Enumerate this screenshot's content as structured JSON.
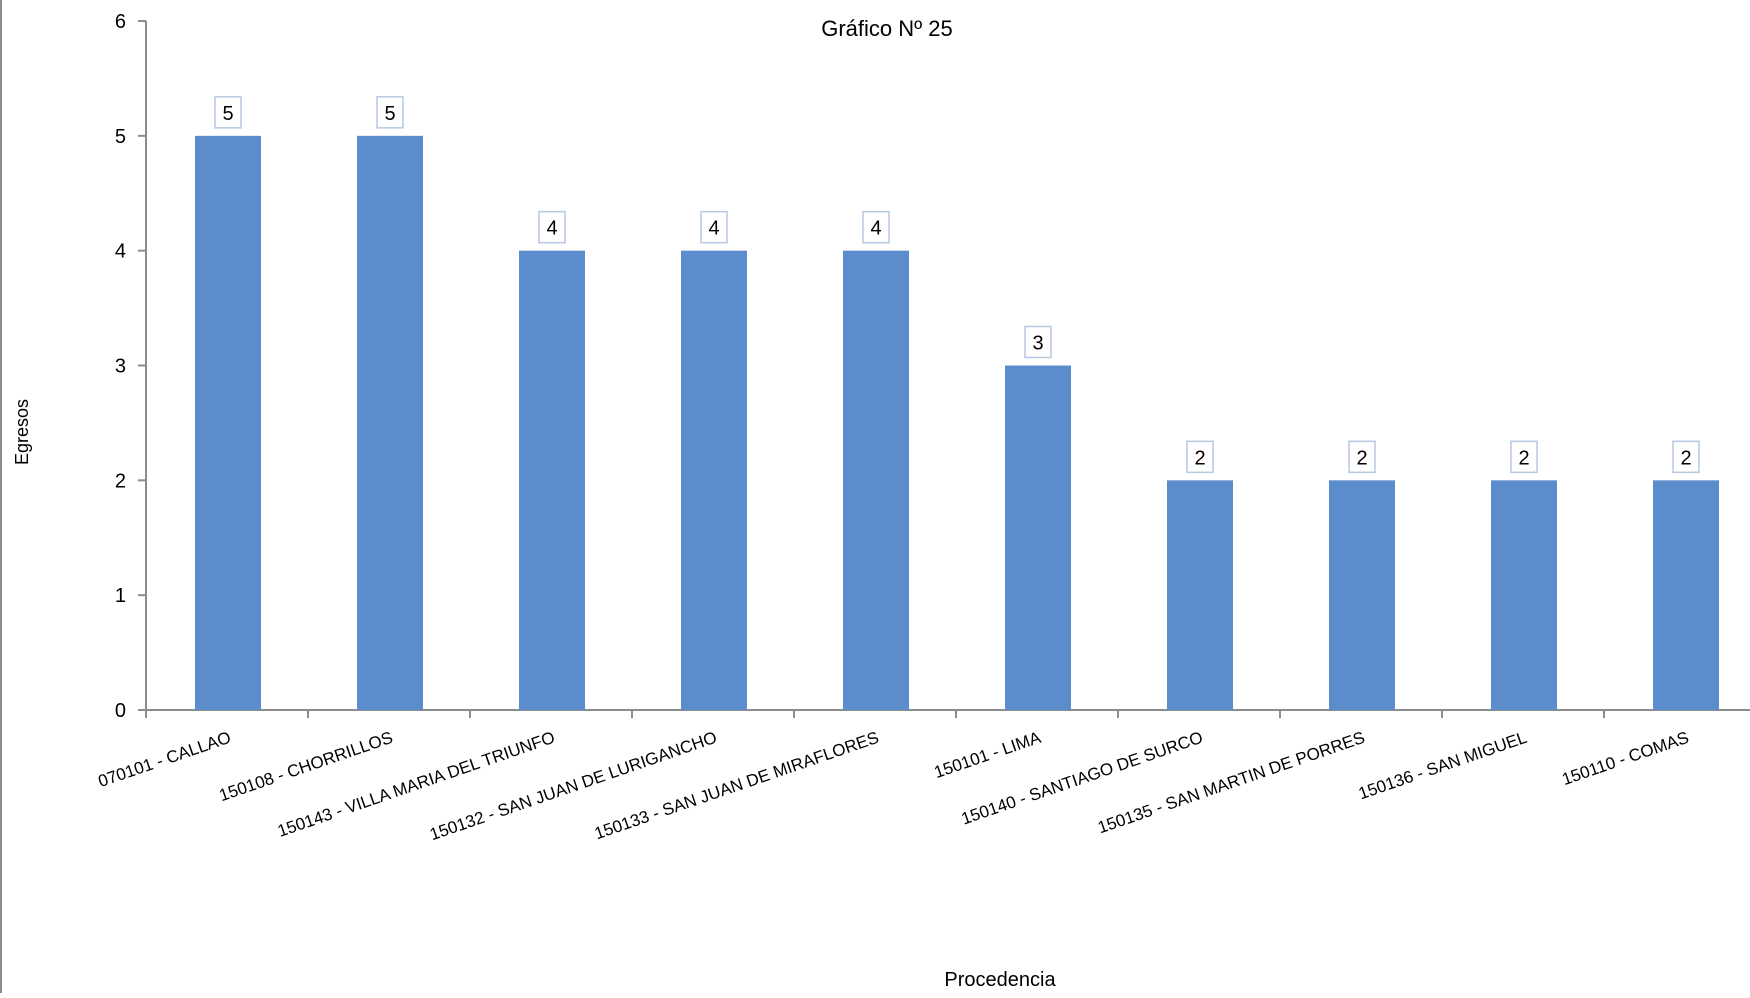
{
  "chart_data": {
    "type": "bar",
    "title": "Gráfico Nº 25",
    "xlabel": "Procedencia",
    "ylabel": "Egresos",
    "ylim": [
      0,
      6
    ],
    "yticks": [
      0,
      1,
      2,
      3,
      4,
      5,
      6
    ],
    "grid": false,
    "legend": "none",
    "categories": [
      "070101 - CALLAO",
      "150108 - CHORRILLOS",
      "150143 - VILLA MARIA DEL TRIUNFO",
      "150132 - SAN JUAN DE LURIGANCHO",
      "150133 - SAN JUAN DE MIRAFLORES",
      "150101 - LIMA",
      "150140 - SANTIAGO DE SURCO",
      "150135 - SAN MARTIN DE PORRES",
      "150136 - SAN MIGUEL",
      "150110 - COMAS"
    ],
    "values": [
      5,
      5,
      4,
      4,
      4,
      3,
      2,
      2,
      2,
      2
    ],
    "colors": {
      "bar": "#5b8ccc",
      "axis": "#8c8c8c",
      "label_border": "#b7c9e2",
      "text": "#000000"
    }
  }
}
